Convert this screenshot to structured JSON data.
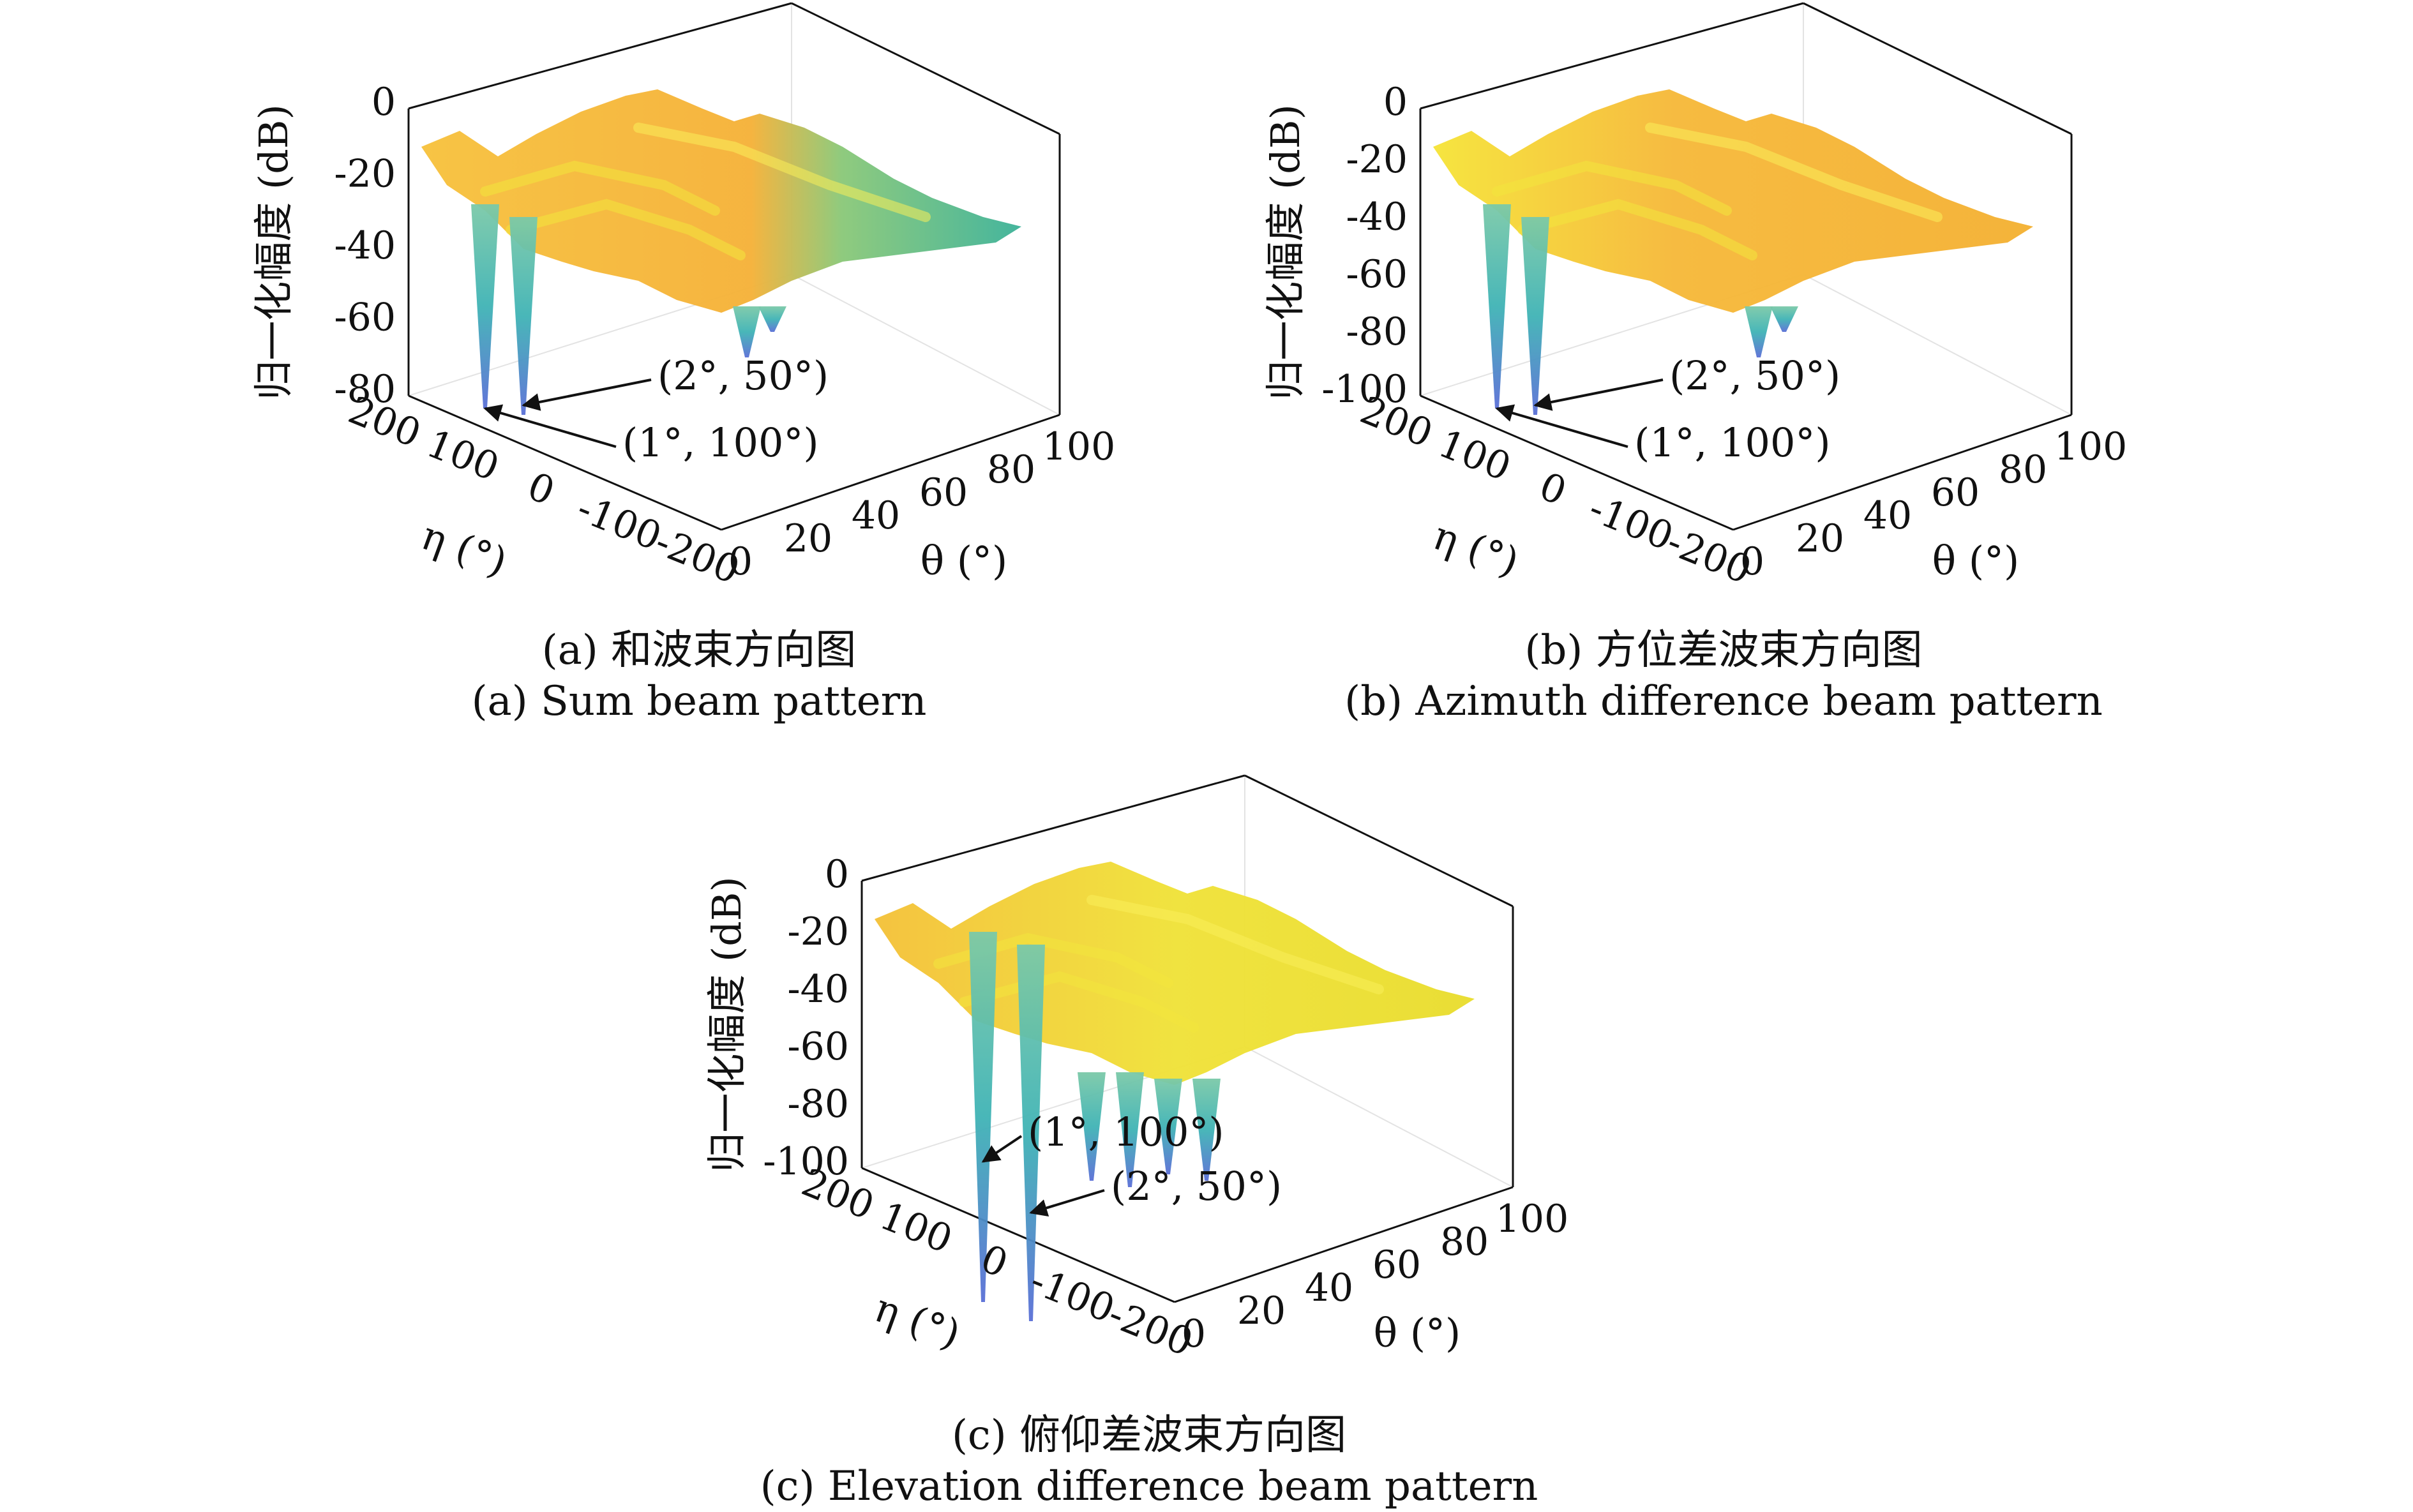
{
  "chart_data": [
    {
      "id": "a",
      "type": "surface",
      "caption_zh": "(a) 和波束方向图",
      "caption_en": "(a) Sum beam pattern",
      "zlabel": "归一化幅度 (dB)",
      "xlabel": "η (°)",
      "ylabel": "θ (°)",
      "z_ticks": [
        "0",
        "-20",
        "-40",
        "-60",
        "-80"
      ],
      "eta_ticks": [
        "200",
        "100",
        "0",
        "-100",
        "-200"
      ],
      "theta_ticks": [
        "0",
        "20",
        "40",
        "60",
        "80",
        "100"
      ],
      "zlim": [
        -80,
        0
      ],
      "xlim": [
        -200,
        200
      ],
      "ylim": [
        0,
        100
      ],
      "annotations": [
        {
          "text": "(2°, 50°)",
          "eta": 50,
          "theta": 2
        },
        {
          "text": "(1°, 100°)",
          "eta": 100,
          "theta": 1
        }
      ]
    },
    {
      "id": "b",
      "type": "surface",
      "caption_zh": "(b) 方位差波束方向图",
      "caption_en": "(b) Azimuth difference beam pattern",
      "zlabel": "归一化幅度 (dB)",
      "xlabel": "η (°)",
      "ylabel": "θ (°)",
      "z_ticks": [
        "0",
        "-20",
        "-40",
        "-60",
        "-80",
        "-100"
      ],
      "eta_ticks": [
        "200",
        "100",
        "0",
        "-100",
        "-200"
      ],
      "theta_ticks": [
        "0",
        "20",
        "40",
        "60",
        "80",
        "100"
      ],
      "zlim": [
        -100,
        0
      ],
      "xlim": [
        -200,
        200
      ],
      "ylim": [
        0,
        100
      ],
      "annotations": [
        {
          "text": "(2°, 50°)",
          "eta": 50,
          "theta": 2
        },
        {
          "text": "(1°, 100°)",
          "eta": 100,
          "theta": 1
        }
      ]
    },
    {
      "id": "c",
      "type": "surface",
      "caption_zh": "(c) 俯仰差波束方向图",
      "caption_en": "(c) Elevation difference beam pattern",
      "zlabel": "归一化幅度 (dB)",
      "xlabel": "η (°)",
      "ylabel": "θ (°)",
      "z_ticks": [
        "0",
        "-20",
        "-40",
        "-60",
        "-80",
        "-100"
      ],
      "eta_ticks": [
        "200",
        "100",
        "0",
        "-100",
        "-200"
      ],
      "theta_ticks": [
        "0",
        "20",
        "40",
        "60",
        "80",
        "100"
      ],
      "zlim": [
        -100,
        0
      ],
      "xlim": [
        -200,
        200
      ],
      "ylim": [
        0,
        100
      ],
      "annotations": [
        {
          "text": "(1°, 100°)",
          "eta": 100,
          "theta": 1
        },
        {
          "text": "(2°, 50°)",
          "eta": 50,
          "theta": 2
        }
      ]
    }
  ],
  "colors": {
    "axes": "#111111",
    "grid": "#e3e3e3",
    "surface_high": "#f2e33a",
    "surface_mid": "#f5b93a",
    "surface_low": "#45b6a8",
    "null_tip": "#5a6fd6"
  }
}
